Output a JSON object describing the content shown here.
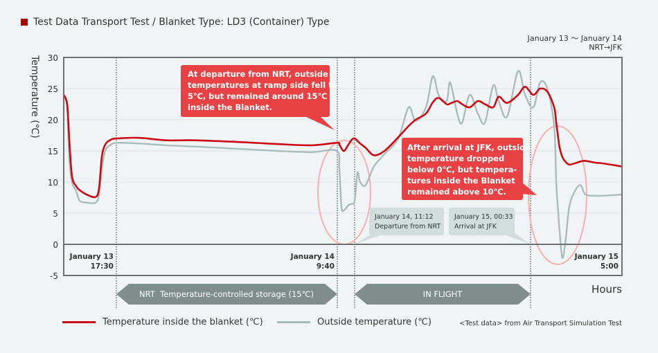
{
  "title": "Test Data Transport Test / Blanket Type: LD3 (Container) Type",
  "route": {
    "dates": "January 13 〜 January 14",
    "path": "NRT→JFK"
  },
  "annotations": {
    "departure_note": [
      "At departure from NRT, outside",
      "temperatures at ramp side fell to",
      "5℃, but remained around 15℃",
      "inside the Blanket."
    ],
    "arrival_note": [
      "After arrival at JFK, outside",
      "temperature dropped",
      "below 0℃, but tempera-",
      "tures inside the Blanket",
      "remained above 10℃."
    ],
    "departure_callout": [
      "January 14, 11:12",
      "Departure from NRT"
    ],
    "arrival_callout": [
      "January 15, 00:33",
      "Arrival at JFK"
    ]
  },
  "phases": {
    "storage": "NRT  Temperature-controlled storage (15℃)",
    "flight": "IN FLIGHT"
  },
  "source": "<Test data> from Air Transport Simulation Test",
  "colors": {
    "inside": "#cc0a12",
    "outside": "#a9bcbc",
    "callout_red": "#e84144",
    "phase_bar": "#7f8d8c",
    "highlight_ring": "#f7b0b0"
  },
  "chart_data": {
    "type": "line",
    "ylabel": "Temperature (℃)",
    "xlabel": "Hours",
    "ylim": [
      -5,
      30
    ],
    "yticks": [
      -5,
      0,
      5,
      10,
      15,
      20,
      25,
      30
    ],
    "grid": true,
    "legend_placement": "bottom",
    "x_labels": [
      {
        "time": "Jan 13 17:30",
        "lines": [
          "January 13",
          "17:30"
        ]
      },
      {
        "time": "Jan 14 09:40",
        "lines": [
          "January 14",
          "9:40"
        ]
      },
      {
        "time": "Jan 15 05:00",
        "lines": [
          "January 15",
          "5:00"
        ]
      }
    ],
    "markers": [
      "Jan 13 17:30",
      "Jan 14 09:40",
      "Jan 14 11:12",
      "Jan 15 00:33"
    ],
    "x": [
      "Jan 13 13:39",
      "Jan 13 13:54",
      "Jan 13 14:03",
      "Jan 13 14:15",
      "Jan 13 14:34",
      "Jan 13 14:49",
      "Jan 13 15:19",
      "Jan 13 15:59",
      "Jan 13 16:14",
      "Jan 13 16:26",
      "Jan 13 16:41",
      "Jan 13 17:06",
      "Jan 13 17:36",
      "Jan 13 19:07",
      "Jan 13 21:09",
      "Jan 13 23:11",
      "Jan 14 02:43",
      "Jan 14 05:15",
      "Jan 14 07:48",
      "Jan 14 09:37",
      "Jan 14 09:51",
      "Jan 14 10:02",
      "Jan 14 10:17",
      "Jan 14 10:39",
      "Jan 14 10:57",
      "Jan 14 11:12",
      "Jan 14 11:25",
      "Jan 14 11:37",
      "Jan 14 12:02",
      "Jan 14 12:40",
      "Jan 14 13:28",
      "Jan 14 14:31",
      "Jan 14 15:18",
      "Jan 14 15:50",
      "Jan 14 16:37",
      "Jan 14 17:08",
      "Jan 14 17:34",
      "Jan 14 18:11",
      "Jan 14 18:27",
      "Jan 14 18:59",
      "Jan 14 19:21",
      "Jan 14 19:56",
      "Jan 14 20:33",
      "Jan 14 21:05",
      "Jan 14 21:43",
      "Jan 14 22:08",
      "Jan 14 22:46",
      "Jan 14 23:36",
      "Jan 15 00:08",
      "Jan 15 00:41",
      "Jan 15 01:01",
      "Jan 15 01:22",
      "Jan 15 01:42",
      "Jan 15 01:48",
      "Jan 15 01:54",
      "Jan 15 01:58",
      "Jan 15 02:06",
      "Jan 15 02:16",
      "Jan 15 02:26",
      "Jan 15 02:42",
      "Jan 15 02:59",
      "Jan 15 03:13",
      "Jan 15 03:43",
      "Jan 15 04:03",
      "Jan 15 05:00"
    ],
    "series": [
      {
        "name": "Temperature inside the blanket (℃)",
        "color": "#cc0a12",
        "values": [
          24.0,
          22.5,
          17,
          11,
          9.3,
          8.7,
          8.0,
          7.6,
          9,
          14,
          16,
          16.8,
          17.0,
          17.1,
          16.7,
          16.7,
          16.4,
          16.1,
          15.9,
          16.3,
          16.0,
          15.4,
          15.0,
          16.0,
          16.8,
          17.0,
          16.6,
          16.2,
          15.5,
          14.3,
          15.0,
          17.2,
          19.0,
          20.0,
          21.0,
          22.8,
          23.5,
          22.5,
          22.6,
          23.0,
          22.5,
          22.0,
          23.0,
          22.5,
          22.0,
          23.7,
          22.7,
          24.0,
          25.3,
          24.0,
          25.0,
          24.5,
          22.0,
          19.5,
          17.0,
          15.5,
          14.0,
          13.2,
          12.8,
          13.0,
          13.3,
          13.4,
          13.1,
          13.0,
          12.5
        ]
      },
      {
        "name": "Outside temperature (℃)",
        "color": "#a9bcbc",
        "values": [
          24.0,
          22.0,
          14,
          10,
          8.5,
          7.0,
          6.7,
          6.7,
          8,
          12,
          15,
          16,
          16.3,
          16.2,
          15.9,
          15.7,
          15.3,
          15.0,
          14.8,
          15.0,
          12,
          6,
          5.5,
          6.3,
          6.5,
          7,
          11.5,
          10,
          9.5,
          12.5,
          14.5,
          17,
          22,
          19.8,
          22,
          27,
          24,
          23,
          26,
          21,
          19.5,
          24,
          21,
          19.5,
          25.5,
          23,
          20.5,
          27.8,
          24,
          22,
          26,
          25,
          19,
          10,
          5,
          2,
          -2.2,
          1,
          6,
          8.5,
          9.5,
          8,
          7.8,
          7.8,
          8
        ]
      }
    ]
  }
}
